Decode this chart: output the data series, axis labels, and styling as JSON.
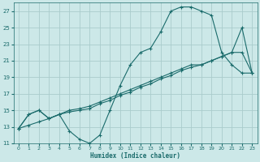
{
  "xlabel": "Humidex (Indice chaleur)",
  "bg_color": "#cce8e8",
  "grid_color": "#aacccc",
  "line_color": "#1a6b6b",
  "xlim": [
    -0.5,
    23.5
  ],
  "ylim": [
    11,
    28
  ],
  "yticks": [
    11,
    13,
    15,
    17,
    19,
    21,
    23,
    25,
    27
  ],
  "xticks": [
    0,
    1,
    2,
    3,
    4,
    5,
    6,
    7,
    8,
    9,
    10,
    11,
    12,
    13,
    14,
    15,
    16,
    17,
    18,
    19,
    20,
    21,
    22,
    23
  ],
  "line1_x": [
    0,
    1,
    2,
    3,
    4,
    5,
    6,
    7,
    8,
    9,
    10,
    11,
    12,
    13,
    14,
    15,
    16,
    17,
    18,
    19,
    20,
    21,
    22,
    23
  ],
  "line1_y": [
    12.8,
    14.5,
    15.0,
    14.0,
    14.5,
    12.5,
    11.5,
    11.0,
    12.0,
    15.0,
    18.0,
    20.5,
    22.0,
    22.5,
    24.5,
    27.0,
    27.5,
    27.5,
    27.0,
    26.5,
    22.0,
    20.5,
    19.5,
    19.5
  ],
  "line2_x": [
    0,
    1,
    2,
    3,
    4,
    5,
    6,
    7,
    8,
    9,
    10,
    11,
    12,
    13,
    14,
    15,
    16,
    17,
    18,
    19,
    20,
    21,
    22,
    23
  ],
  "line2_y": [
    12.8,
    14.5,
    15.0,
    14.0,
    14.5,
    15.0,
    15.2,
    15.5,
    16.0,
    16.5,
    17.0,
    17.5,
    18.0,
    18.5,
    19.0,
    19.5,
    20.0,
    20.5,
    20.5,
    21.0,
    21.5,
    22.0,
    22.0,
    19.5
  ],
  "line3_x": [
    0,
    1,
    2,
    3,
    4,
    5,
    6,
    7,
    8,
    9,
    10,
    11,
    12,
    13,
    14,
    15,
    16,
    17,
    18,
    19,
    20,
    21,
    22,
    23
  ],
  "line3_y": [
    12.8,
    13.2,
    13.6,
    14.0,
    14.5,
    14.8,
    15.0,
    15.2,
    15.8,
    16.2,
    16.8,
    17.2,
    17.8,
    18.2,
    18.8,
    19.2,
    19.8,
    20.2,
    20.5,
    21.0,
    21.5,
    22.0,
    25.0,
    19.5
  ]
}
